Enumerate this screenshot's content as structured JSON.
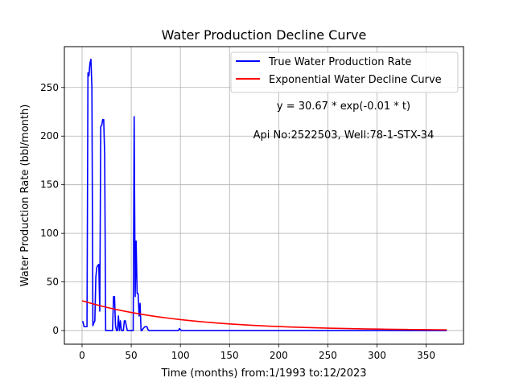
{
  "chart_data": {
    "type": "line",
    "title": "Water Production Decline Curve",
    "xlabel": "Time (months) from:1/1993 to:12/2023",
    "ylabel": "Water Production Rate (bbl/month)",
    "xlim": [
      -18,
      388
    ],
    "ylim": [
      -14,
      292
    ],
    "xticks": [
      0,
      50,
      100,
      150,
      200,
      250,
      300,
      350
    ],
    "yticks": [
      0,
      50,
      100,
      150,
      200,
      250
    ],
    "grid": true,
    "legend_position": "top-right",
    "annotations": [
      "y = 30.67 * exp(-0.01 * t)",
      "Api No:2522503, Well:78-1-STX-34"
    ],
    "series": [
      {
        "name": "True Water Production Rate",
        "color": "#0000ff",
        "x": [
          0,
          1,
          2,
          3,
          4,
          5,
          6,
          7,
          8,
          9,
          10,
          11,
          12,
          13,
          14,
          15,
          16,
          17,
          18,
          19,
          20,
          21,
          22,
          23,
          24,
          25,
          26,
          27,
          28,
          29,
          30,
          31,
          32,
          33,
          34,
          35,
          36,
          37,
          38,
          39,
          40,
          41,
          42,
          43,
          44,
          45,
          46,
          47,
          48,
          49,
          50,
          51,
          52,
          53,
          54,
          55,
          56,
          57,
          58,
          59,
          60,
          61,
          62,
          63,
          64,
          65,
          66,
          67,
          68,
          69,
          70,
          80,
          90,
          98,
          99,
          100,
          101,
          110,
          150,
          200,
          250,
          300,
          350,
          371
        ],
        "values": [
          9,
          9,
          4,
          4,
          4,
          4,
          265,
          262,
          275,
          279,
          250,
          5,
          8,
          10,
          55,
          65,
          67,
          68,
          20,
          210,
          211,
          217,
          217,
          180,
          0,
          0,
          0,
          0,
          0,
          0,
          0,
          0,
          35,
          35,
          5,
          0,
          0,
          15,
          0,
          10,
          0,
          0,
          0,
          10,
          10,
          5,
          0,
          0,
          0,
          0,
          0,
          0,
          0,
          220,
          35,
          92,
          38,
          38,
          15,
          28,
          0,
          0,
          2,
          3,
          4,
          4,
          4,
          1,
          0,
          0,
          0,
          0,
          0,
          0,
          2,
          1,
          0,
          0,
          0,
          0,
          0,
          0,
          0,
          0
        ]
      },
      {
        "name": "Exponential Water Decline Curve",
        "color": "#ff0000",
        "x": [
          0,
          10,
          20,
          30,
          40,
          50,
          60,
          70,
          80,
          90,
          100,
          110,
          120,
          130,
          140,
          150,
          160,
          170,
          180,
          190,
          200,
          210,
          220,
          230,
          240,
          250,
          260,
          270,
          280,
          290,
          300,
          310,
          320,
          330,
          340,
          350,
          360,
          371
        ],
        "values": [
          30.67,
          27.75,
          25.11,
          22.72,
          20.56,
          18.6,
          16.83,
          15.23,
          13.78,
          12.47,
          11.28,
          10.21,
          9.24,
          8.36,
          7.56,
          6.84,
          6.19,
          5.6,
          5.07,
          4.59,
          4.15,
          3.76,
          3.4,
          3.08,
          2.78,
          2.52,
          2.28,
          2.06,
          1.87,
          1.69,
          1.53,
          1.38,
          1.25,
          1.13,
          1.02,
          0.93,
          0.84,
          0.75
        ]
      }
    ]
  }
}
